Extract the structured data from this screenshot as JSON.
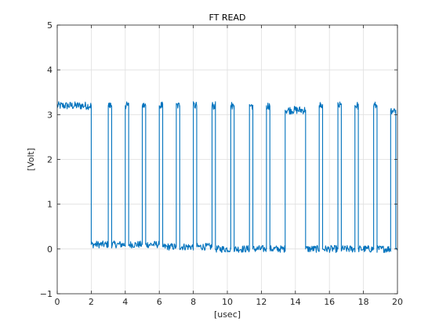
{
  "chart_data": {
    "type": "line",
    "title": "FT READ",
    "xlabel": "[usec]",
    "ylabel": "[Volt]",
    "xlim": [
      0,
      20
    ],
    "ylim": [
      -1,
      5
    ],
    "x_ticks": [
      0,
      2,
      4,
      6,
      8,
      10,
      12,
      14,
      16,
      18,
      20
    ],
    "y_ticks": [
      -1,
      0,
      1,
      2,
      3,
      4,
      5
    ],
    "grid": true,
    "line_color": "#0072BD",
    "high_level": 3.2,
    "low_level": 0.05,
    "series": [
      {
        "x": [
          0,
          2.0,
          2.0,
          3.0,
          3.0,
          3.2,
          3.2,
          4.0,
          4.0,
          4.2,
          4.2,
          5.0,
          5.0,
          5.2,
          5.2,
          6.0,
          6.0,
          6.2,
          6.2,
          7.0,
          7.0,
          7.2,
          7.2,
          8.0,
          8.0,
          8.2,
          8.2,
          9.1,
          9.1,
          9.3,
          9.3,
          10.2,
          10.2,
          10.4,
          10.4,
          11.3,
          11.3,
          11.5,
          11.5,
          12.3,
          12.3,
          12.5,
          12.5,
          13.4,
          13.4,
          14.6,
          14.6,
          15.4,
          15.4,
          15.6,
          15.6,
          16.5,
          16.5,
          16.7,
          16.7,
          17.5,
          17.5,
          17.7,
          17.7,
          18.6,
          18.6,
          18.8,
          18.8,
          19.6,
          19.6,
          19.9,
          19.9,
          20.0
        ],
        "y": [
          3.2,
          3.2,
          0.1,
          0.1,
          3.2,
          3.2,
          0.1,
          0.1,
          3.2,
          3.2,
          0.1,
          0.1,
          3.2,
          3.2,
          0.1,
          0.1,
          3.2,
          3.2,
          0.05,
          0.05,
          3.2,
          3.2,
          0.05,
          0.05,
          3.2,
          3.2,
          0.05,
          0.05,
          3.2,
          3.2,
          0.0,
          0.0,
          3.2,
          3.2,
          0.0,
          0.0,
          3.2,
          3.2,
          0.0,
          0.0,
          3.2,
          3.2,
          0.0,
          0.0,
          3.1,
          3.1,
          0.0,
          0.0,
          3.2,
          3.2,
          0.0,
          0.0,
          3.2,
          3.2,
          0.0,
          0.0,
          3.2,
          3.2,
          0.0,
          0.0,
          3.2,
          3.2,
          0.0,
          0.0,
          3.1,
          3.1,
          0.0,
          0.0
        ]
      }
    ]
  }
}
